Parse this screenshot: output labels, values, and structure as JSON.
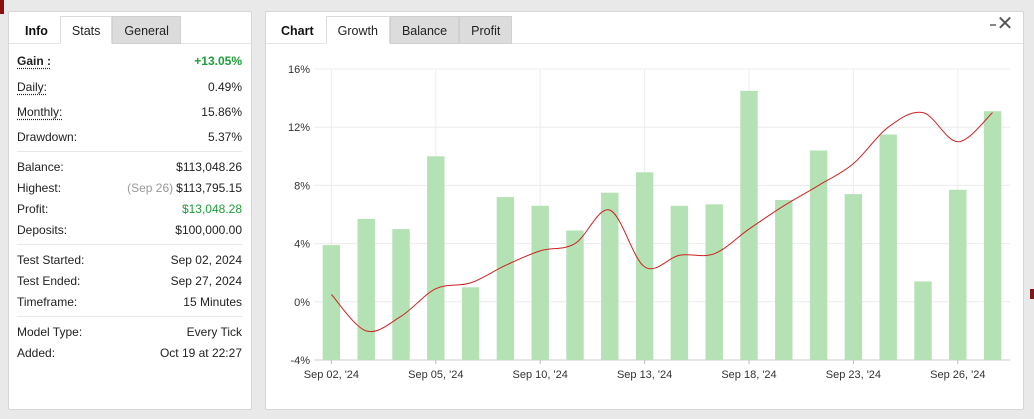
{
  "left_tabs": [
    {
      "label": "Info"
    },
    {
      "label": "Stats"
    },
    {
      "label": "General"
    }
  ],
  "gain": {
    "label": "Gain :",
    "value": "+13.05%"
  },
  "period_stats": [
    {
      "label": "Daily:",
      "value": "0.49%"
    },
    {
      "label": "Monthly:",
      "value": "15.86%"
    },
    {
      "label": "Drawdown:",
      "value": "5.37%"
    }
  ],
  "account_stats": {
    "balance": {
      "label": "Balance:",
      "value": "$113,048.26"
    },
    "highest": {
      "label": "Highest:",
      "date": "(Sep 26)",
      "value": "$113,795.15"
    },
    "profit": {
      "label": "Profit:",
      "value": "$13,048.28"
    },
    "deposits": {
      "label": "Deposits:",
      "value": "$100,000.00"
    }
  },
  "test_info": [
    {
      "label": "Test Started:",
      "value": "Sep 02, 2024"
    },
    {
      "label": "Test Ended:",
      "value": "Sep 27, 2024"
    },
    {
      "label": "Timeframe:",
      "value": "15 Minutes"
    }
  ],
  "model_info": [
    {
      "label": "Model Type:",
      "value": "Every Tick"
    },
    {
      "label": "Added:",
      "value": "Oct 19 at 22:27"
    }
  ],
  "right_tabs": [
    {
      "label": "Chart"
    },
    {
      "label": "Growth"
    },
    {
      "label": "Balance"
    },
    {
      "label": "Profit"
    }
  ],
  "close_icon": "close-icon",
  "colors": {
    "bar": "#b5e2b5",
    "line": "#cc2222",
    "positive": "#1e9e3a",
    "grid": "#ececec"
  },
  "chart_data": {
    "type": "bar",
    "title": "",
    "xlabel": "",
    "ylabel": "",
    "ylim": [
      -4,
      16
    ],
    "y_ticks": [
      "-4%",
      "0%",
      "4%",
      "8%",
      "12%",
      "16%"
    ],
    "x_ticks": [
      "Sep 02, '24",
      "Sep 05, '24",
      "Sep 10, '24",
      "Sep 13, '24",
      "Sep 18, '24",
      "Sep 23, '24",
      "Sep 26, '24"
    ],
    "x_tick_positions": [
      0,
      3,
      6,
      9,
      12,
      15,
      18
    ],
    "bars": [
      3.9,
      5.7,
      5.0,
      10.0,
      1.0,
      7.2,
      6.6,
      4.9,
      7.5,
      8.9,
      6.6,
      6.7,
      14.5,
      7.0,
      10.4,
      7.4,
      11.5,
      1.4,
      7.7,
      13.1
    ],
    "growth_line": [
      0.5,
      -2.0,
      -1.0,
      0.9,
      1.3,
      2.5,
      3.5,
      4.0,
      6.3,
      2.4,
      3.2,
      3.3,
      5.0,
      6.6,
      8.0,
      9.5,
      12.0,
      13.0,
      11.0,
      13.0
    ],
    "grid": true
  }
}
